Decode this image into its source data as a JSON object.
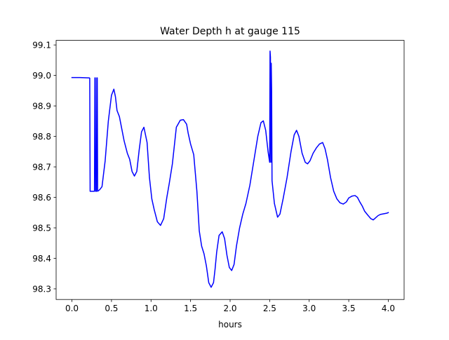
{
  "chart_data": {
    "type": "line",
    "title": "Water Depth h at gauge 115",
    "xlabel": "hours",
    "ylabel": "",
    "xlim": [
      -0.2,
      4.2
    ],
    "ylim": [
      98.265,
      99.115
    ],
    "xticks": [
      0.0,
      0.5,
      1.0,
      1.5,
      2.0,
      2.5,
      3.0,
      3.5,
      4.0
    ],
    "xtick_labels": [
      "0.0",
      "0.5",
      "1.0",
      "1.5",
      "2.0",
      "2.5",
      "3.0",
      "3.5",
      "4.0"
    ],
    "yticks": [
      98.3,
      98.4,
      98.5,
      98.6,
      98.7,
      98.8,
      98.9,
      99.0,
      99.1
    ],
    "ytick_labels": [
      "98.3",
      "98.4",
      "98.5",
      "98.6",
      "98.7",
      "98.8",
      "98.9",
      "99.0",
      "99.1"
    ],
    "grid": false,
    "line_color": "#0000ff",
    "series": [
      {
        "x": [
          0.0,
          0.1,
          0.22,
          0.225,
          0.23,
          0.26,
          0.285,
          0.29,
          0.295,
          0.3,
          0.31,
          0.315,
          0.32,
          0.325,
          0.35,
          0.38,
          0.42,
          0.46,
          0.5,
          0.53,
          0.55,
          0.57,
          0.6,
          0.63,
          0.66,
          0.7,
          0.73,
          0.76,
          0.79,
          0.82,
          0.85,
          0.88,
          0.91,
          0.95,
          0.98,
          1.01,
          1.04,
          1.08,
          1.12,
          1.16,
          1.2,
          1.23,
          1.27,
          1.32,
          1.37,
          1.41,
          1.45,
          1.47,
          1.5,
          1.54,
          1.58,
          1.61,
          1.64,
          1.67,
          1.7,
          1.73,
          1.76,
          1.79,
          1.81,
          1.83,
          1.86,
          1.9,
          1.93,
          1.96,
          1.99,
          2.02,
          2.05,
          2.08,
          2.12,
          2.16,
          2.2,
          2.25,
          2.3,
          2.35,
          2.39,
          2.42,
          2.45,
          2.48,
          2.5,
          2.505,
          2.51,
          2.515,
          2.52,
          2.525,
          2.53,
          2.56,
          2.6,
          2.63,
          2.67,
          2.72,
          2.77,
          2.81,
          2.84,
          2.87,
          2.91,
          2.95,
          2.98,
          3.01,
          3.05,
          3.09,
          3.13,
          3.17,
          3.2,
          3.23,
          3.27,
          3.31,
          3.35,
          3.39,
          3.43,
          3.47,
          3.5,
          3.54,
          3.58,
          3.61,
          3.64,
          3.67,
          3.7,
          3.74,
          3.78,
          3.81,
          3.84,
          3.87,
          3.9,
          3.94,
          3.98,
          4.0
        ],
        "y": [
          98.993,
          98.993,
          98.992,
          98.991,
          98.62,
          98.62,
          98.62,
          98.992,
          98.992,
          98.62,
          98.62,
          98.992,
          98.992,
          98.62,
          98.625,
          98.635,
          98.72,
          98.85,
          98.935,
          98.955,
          98.93,
          98.885,
          98.865,
          98.825,
          98.785,
          98.745,
          98.725,
          98.685,
          98.67,
          98.685,
          98.755,
          98.815,
          98.83,
          98.78,
          98.665,
          98.595,
          98.56,
          98.52,
          98.508,
          98.53,
          98.6,
          98.645,
          98.71,
          98.83,
          98.853,
          98.855,
          98.84,
          98.81,
          98.775,
          98.74,
          98.62,
          98.49,
          98.44,
          98.415,
          98.375,
          98.32,
          98.305,
          98.32,
          98.365,
          98.42,
          98.475,
          98.487,
          98.465,
          98.41,
          98.37,
          98.36,
          98.38,
          98.44,
          98.5,
          98.545,
          98.58,
          98.64,
          98.72,
          98.8,
          98.845,
          98.851,
          98.82,
          98.75,
          98.715,
          99.08,
          99.06,
          98.715,
          99.04,
          98.95,
          98.655,
          98.58,
          98.535,
          98.545,
          98.595,
          98.665,
          98.75,
          98.805,
          98.82,
          98.8,
          98.745,
          98.715,
          98.71,
          98.72,
          98.745,
          98.762,
          98.775,
          98.78,
          98.76,
          98.725,
          98.665,
          98.62,
          98.595,
          98.582,
          98.578,
          98.585,
          98.598,
          98.604,
          98.606,
          98.6,
          98.585,
          98.572,
          98.555,
          98.542,
          98.53,
          98.526,
          98.533,
          98.54,
          98.544,
          98.546,
          98.548,
          98.55
        ]
      }
    ]
  }
}
